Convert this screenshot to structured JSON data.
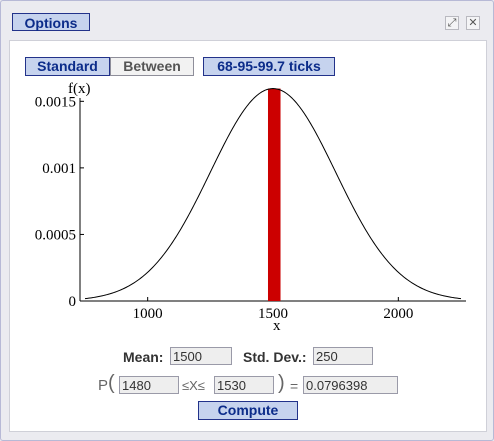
{
  "titlebar": {
    "options_label": "Options",
    "icons": [
      "expand-icon",
      "close-icon"
    ],
    "expand_glyph": "⤢",
    "close_glyph": "✕"
  },
  "mode_buttons": {
    "standard": "Standard",
    "between": "Between",
    "ticks": "68-95-99.7 ticks"
  },
  "chart_data": {
    "type": "line",
    "ylabel": "f(x)",
    "xlabel": "x",
    "xlim": [
      730,
      2270
    ],
    "ylim": [
      0,
      0.0016
    ],
    "x_ticks": [
      1000,
      1500,
      2000
    ],
    "y_ticks": [
      0,
      0.0005,
      0.001,
      0.0015
    ],
    "y_tick_labels": [
      "0",
      "0.0005",
      "0.001",
      "0.0015"
    ],
    "x_tick_labels": [
      "1000",
      "1500",
      "2000"
    ],
    "curve": {
      "mean": 1500,
      "sd": 250,
      "x_range": [
        750,
        2250
      ],
      "color": "#000000"
    },
    "shaded_region": {
      "x_from": 1480,
      "x_to": 1530,
      "color": "#cc0000"
    },
    "grid": false,
    "legend": "none"
  },
  "params": {
    "mean_label": "Mean:",
    "mean_value": "1500",
    "sd_label": "Std. Dev.:",
    "sd_value": "250"
  },
  "probability": {
    "prefix": "P",
    "open_paren": "(",
    "lower": "1480",
    "middle": "≤X≤",
    "upper": "1530",
    "close_paren": ")",
    "equals": "=",
    "result": "0.0796398"
  },
  "compute_label": "Compute"
}
